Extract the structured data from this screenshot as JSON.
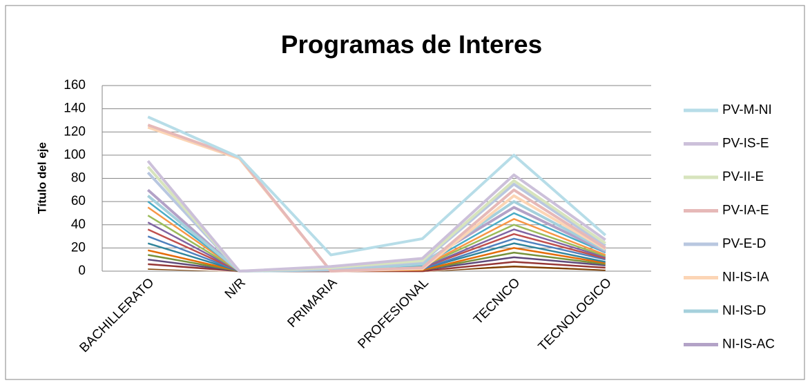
{
  "chart_data": {
    "type": "line",
    "title": "Programas de Interes",
    "y_axis_label": "Título del eje",
    "categories": [
      "BACHILLERATO",
      "N/R",
      "PRIMARIA",
      "PROFESIONAL",
      "TECNICO",
      "TECNOLOGICO"
    ],
    "ylim": [
      0,
      160
    ],
    "yticks": [
      0,
      20,
      40,
      60,
      80,
      100,
      120,
      140,
      160
    ],
    "grid": true,
    "legend": "right",
    "series": [
      {
        "name": "PV-M-NI",
        "color": "#b7dde8",
        "values": [
          133,
          98,
          14,
          28,
          100,
          31
        ]
      },
      {
        "name": "PV-IS-E",
        "color": "#ccc0da",
        "values": [
          95,
          0,
          4,
          11,
          83,
          27
        ]
      },
      {
        "name": "PV-II-E",
        "color": "#d7e4bd",
        "values": [
          90,
          0,
          3,
          9,
          78,
          24
        ]
      },
      {
        "name": "PV-IA-E",
        "color": "#e6b9b8",
        "values": [
          126,
          98,
          0,
          3,
          70,
          20
        ]
      },
      {
        "name": "PV-E-D",
        "color": "#b9c7e0",
        "values": [
          85,
          0,
          2,
          8,
          75,
          22
        ]
      },
      {
        "name": "NI-IS-IA",
        "color": "#fcd5b5",
        "values": [
          124,
          97,
          0,
          2,
          65,
          19
        ]
      },
      {
        "name": "NI-IS-D",
        "color": "#a5d0dc",
        "values": [
          65,
          0,
          1,
          6,
          60,
          18
        ]
      },
      {
        "name": "NI-IS-AC",
        "color": "#b3a2c7",
        "values": [
          70,
          0,
          2,
          7,
          55,
          17
        ]
      },
      {
        "color": "#4bacc6",
        "values": [
          60,
          0,
          1,
          5,
          50,
          16
        ]
      },
      {
        "color": "#f79646",
        "values": [
          55,
          0,
          1,
          4,
          45,
          14
        ]
      },
      {
        "color": "#9bbb59",
        "values": [
          48,
          0,
          1,
          4,
          40,
          13
        ]
      },
      {
        "color": "#8064a2",
        "values": [
          42,
          0,
          1,
          3,
          36,
          12
        ]
      },
      {
        "color": "#c0504d",
        "values": [
          36,
          0,
          0,
          3,
          32,
          11
        ]
      },
      {
        "color": "#4f81bd",
        "values": [
          30,
          0,
          0,
          2,
          28,
          10
        ]
      },
      {
        "color": "#31859c",
        "values": [
          24,
          0,
          0,
          2,
          24,
          8
        ]
      },
      {
        "color": "#e46c0a",
        "values": [
          18,
          0,
          0,
          1,
          20,
          7
        ]
      },
      {
        "color": "#76923c",
        "values": [
          14,
          0,
          0,
          1,
          16,
          6
        ]
      },
      {
        "color": "#5f497a",
        "values": [
          10,
          0,
          0,
          1,
          12,
          5
        ]
      },
      {
        "color": "#953735",
        "values": [
          6,
          0,
          0,
          0,
          8,
          3
        ]
      },
      {
        "color": "#ffffff",
        "values": [
          3,
          0,
          0,
          0,
          6,
          2
        ]
      },
      {
        "color": "#7f3f00",
        "values": [
          2,
          0,
          0,
          0,
          4,
          1
        ]
      }
    ]
  }
}
